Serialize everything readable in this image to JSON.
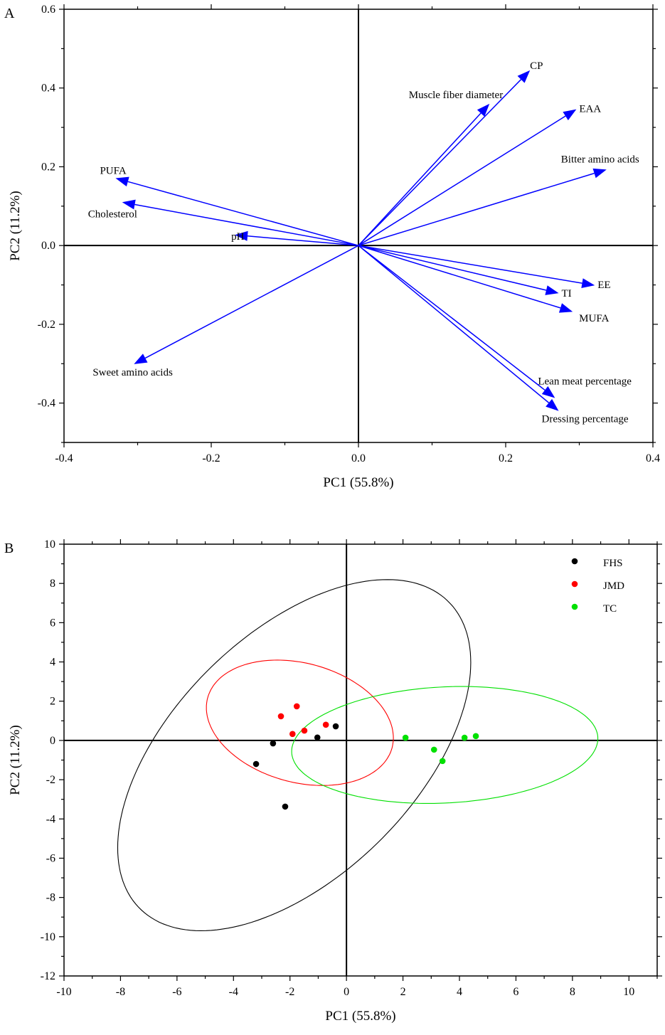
{
  "chart_data": [
    {
      "panel": "A",
      "type": "biplot",
      "xlabel": "PC1 (55.8%)",
      "ylabel": "PC2 (11.2%)",
      "xlim": [
        -0.4,
        0.4
      ],
      "ylim": [
        -0.5,
        0.6
      ],
      "xticks": [
        -0.4,
        -0.2,
        0.0,
        0.2,
        0.4
      ],
      "xtick_labels": [
        "-0.4",
        "-0.2",
        "0.0",
        "0.2",
        "0.4"
      ],
      "yticks": [
        -0.4,
        -0.2,
        0.0,
        0.2,
        0.4,
        0.6
      ],
      "ytick_labels": [
        "-0.4",
        "-0.2",
        "0.0",
        "0.2",
        "0.4",
        "0.6"
      ],
      "arrow_color": "#0000ff",
      "loadings": [
        {
          "name": "CP",
          "x": 0.233,
          "y": 0.445
        },
        {
          "name": "Muscle fiber diameter",
          "x": 0.178,
          "y": 0.36
        },
        {
          "name": "EAA",
          "x": 0.296,
          "y": 0.346
        },
        {
          "name": "Bitter amino acids",
          "x": 0.337,
          "y": 0.193
        },
        {
          "name": "EE",
          "x": 0.321,
          "y": -0.101
        },
        {
          "name": "TI",
          "x": 0.272,
          "y": -0.121
        },
        {
          "name": "MUFA",
          "x": 0.291,
          "y": -0.168
        },
        {
          "name": "Lean meat percentage",
          "x": 0.267,
          "y": -0.387
        },
        {
          "name": "Dressing percentage",
          "x": 0.272,
          "y": -0.42
        },
        {
          "name": "PUFA",
          "x": -0.33,
          "y": 0.171
        },
        {
          "name": "Cholesterol",
          "x": -0.321,
          "y": 0.11
        },
        {
          "name": "pH",
          "x": -0.168,
          "y": 0.027
        },
        {
          "name": "Sweet amino acids",
          "x": -0.305,
          "y": -0.301
        }
      ]
    },
    {
      "panel": "B",
      "type": "scatter",
      "xlabel": "PC1 (55.8%)",
      "ylabel": "PC2 (11.2%)",
      "xlim": [
        -10,
        11
      ],
      "ylim": [
        -12,
        10
      ],
      "xticks": [
        -10,
        -8,
        -6,
        -4,
        -2,
        0,
        2,
        4,
        6,
        8,
        10
      ],
      "xtick_labels": [
        "-10",
        "-8",
        "-6",
        "-4",
        "-2",
        "0",
        "2",
        "4",
        "6",
        "8",
        "10"
      ],
      "yticks": [
        -12,
        -10,
        -8,
        -6,
        -4,
        -2,
        0,
        2,
        4,
        6,
        8,
        10
      ],
      "ytick_labels": [
        "-12",
        "-10",
        "-8",
        "-6",
        "-4",
        "-2",
        "0",
        "2",
        "4",
        "6",
        "8",
        "10"
      ],
      "legend_position": "top-right",
      "series": [
        {
          "name": "FHS",
          "color": "#000000",
          "points": [
            [
              -3.2,
              -1.2
            ],
            [
              -2.6,
              -0.15
            ],
            [
              -1.03,
              0.15
            ],
            [
              -0.38,
              0.72
            ],
            [
              -2.17,
              -3.37
            ]
          ],
          "ellipse": {
            "center": [
              -1.85,
              -0.75
            ],
            "u": [
              6.25,
              4.72
            ],
            "v": [
              0,
              7.6
            ]
          }
        },
        {
          "name": "JMD",
          "color": "#ff0000",
          "points": [
            [
              -2.32,
              1.23
            ],
            [
              -1.76,
              1.74
            ],
            [
              -1.91,
              0.33
            ],
            [
              -1.49,
              0.5
            ],
            [
              -0.73,
              0.8
            ]
          ],
          "ellipse": {
            "center": [
              -1.65,
              0.9
            ],
            "u": [
              3.31,
              -0.77
            ],
            "v": [
              0,
              3.1
            ]
          }
        },
        {
          "name": "TC",
          "color": "#00e000",
          "points": [
            [
              2.09,
              0.14
            ],
            [
              3.1,
              -0.47
            ],
            [
              3.4,
              -1.05
            ],
            [
              4.18,
              0.14
            ],
            [
              4.58,
              0.22
            ]
          ],
          "ellipse": {
            "center": [
              3.48,
              -0.23
            ],
            "u": [
              5.42,
              0.33
            ],
            "v": [
              0,
              2.96
            ]
          }
        }
      ]
    }
  ]
}
